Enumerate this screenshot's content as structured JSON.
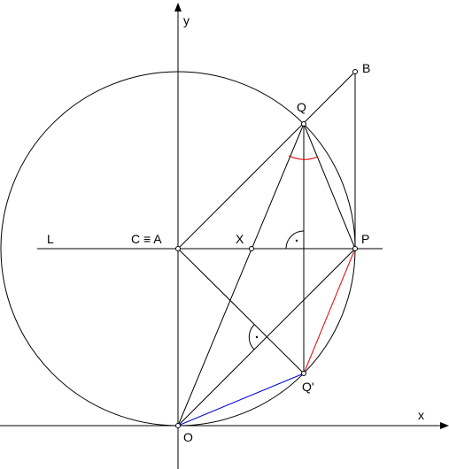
{
  "axes": {
    "x": "x",
    "y": "y"
  },
  "points": {
    "B": "B",
    "Q": "Q",
    "L": "L",
    "CA": "C ≡ A",
    "X": "X",
    "P": "P",
    "Qp": "Q'",
    "O": "O"
  }
}
